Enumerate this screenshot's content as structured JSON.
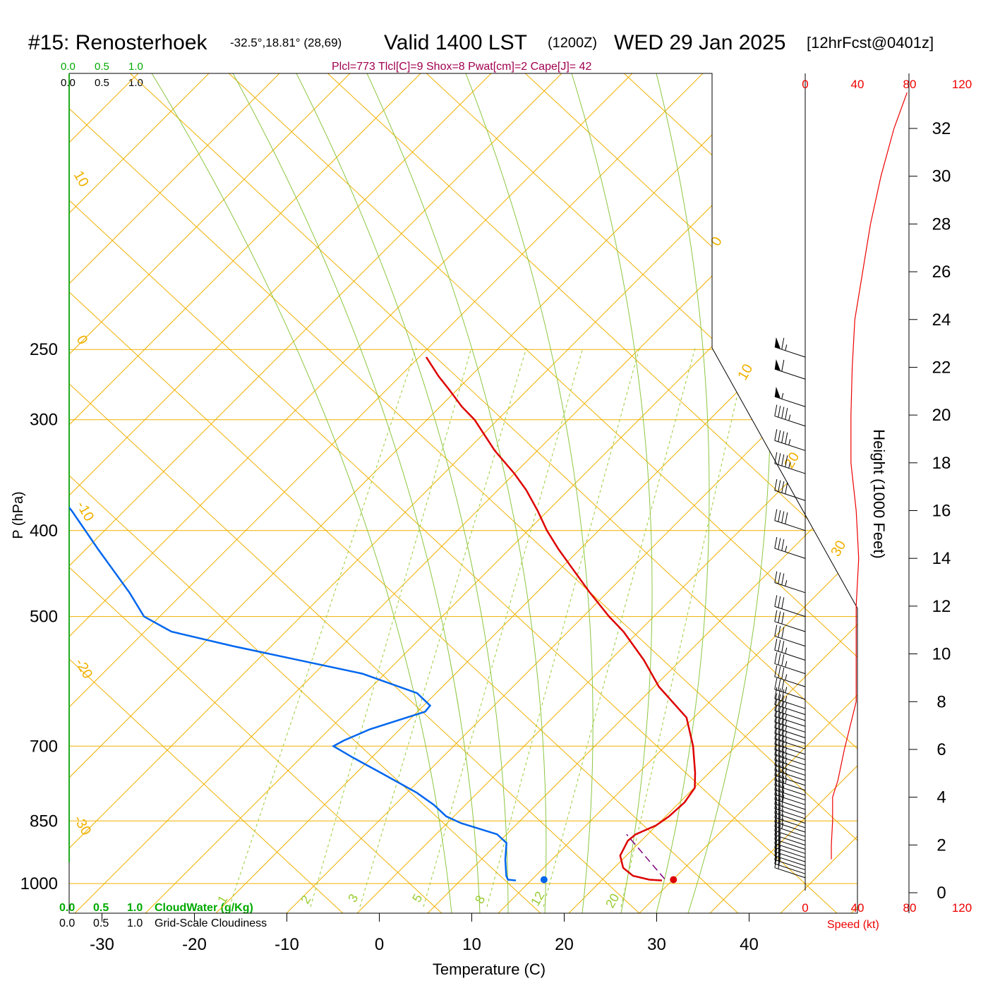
{
  "header": {
    "station": "#15: Renosterhoek",
    "coords": "-32.5°,18.81° (28,69)",
    "valid": "Valid 1400 LST",
    "utc": "(1200Z)",
    "date": "WED 29 Jan 2025",
    "forecast": "[12hrFcst@0401z]"
  },
  "indices": "Plcl=773 Tlcl[C]=9 Shox=8 Pwat[cm]=2 Cape[J]= 42",
  "scale_labels": {
    "v0": "0.0",
    "v05": "0.5",
    "v10": "1.0"
  },
  "bottom_labels": {
    "cloudwater": "CloudWater (g/Kg)",
    "cloudiness": "Grid-Scale Cloudiness"
  },
  "speed_axis": {
    "ticks": [
      "0",
      "40",
      "80",
      "120"
    ],
    "title": "Speed (kt)"
  },
  "height_axis": {
    "title": "Height (1000 Feet)",
    "ticks": [
      "0",
      "2",
      "4",
      "6",
      "8",
      "10",
      "12",
      "14",
      "16",
      "18",
      "20",
      "22",
      "24",
      "26",
      "28",
      "30",
      "32"
    ]
  },
  "colors": {
    "temperature": "#dd0000",
    "dewpoint": "#0066ee",
    "isotherm": "#f0b000",
    "dry_adiabat": "#8cc63f",
    "mixing_ratio": "#99cc33",
    "parcel": "#800080",
    "title_indices": "#a0004f",
    "scale_green": "#00aa00"
  },
  "chart_data": {
    "type": "skew-t",
    "xlabel": "Temperature (C)",
    "ylabel": "P (hPa)",
    "x_ticks": [
      -30,
      -20,
      -10,
      0,
      10,
      20,
      30,
      40
    ],
    "y_ticks": [
      250,
      300,
      400,
      500,
      700,
      850,
      1000
    ],
    "isotherm_labels": [
      "10",
      "0",
      "-10",
      "-20",
      "-30",
      "0",
      "10",
      "20",
      "30"
    ],
    "mixing_ratio_labels": [
      "1",
      "2",
      "3",
      "5",
      "8",
      "12",
      "20"
    ],
    "temperature_profile": [
      {
        "p": 992,
        "t": 30.4
      },
      {
        "p": 990,
        "t": 29.0
      },
      {
        "p": 980,
        "t": 27.0
      },
      {
        "p": 960,
        "t": 25.5
      },
      {
        "p": 930,
        "t": 24.5
      },
      {
        "p": 895,
        "t": 24.5
      },
      {
        "p": 880,
        "t": 25.0
      },
      {
        "p": 860,
        "t": 26.7
      },
      {
        "p": 840,
        "t": 27.6
      },
      {
        "p": 810,
        "t": 28.5
      },
      {
        "p": 780,
        "t": 28.8
      },
      {
        "p": 750,
        "t": 28.0
      },
      {
        "p": 700,
        "t": 26.3
      },
      {
        "p": 650,
        "t": 24.0
      },
      {
        "p": 600,
        "t": 19.3
      },
      {
        "p": 560,
        "t": 16.2
      },
      {
        "p": 520,
        "t": 12.4
      },
      {
        "p": 500,
        "t": 10.0
      },
      {
        "p": 470,
        "t": 6.6
      },
      {
        "p": 440,
        "t": 3.2
      },
      {
        "p": 420,
        "t": 0.8
      },
      {
        "p": 400,
        "t": -1.5
      },
      {
        "p": 380,
        "t": -3.6
      },
      {
        "p": 360,
        "t": -6.0
      },
      {
        "p": 345,
        "t": -8.2
      },
      {
        "p": 325,
        "t": -11.6
      },
      {
        "p": 300,
        "t": -15.5
      },
      {
        "p": 290,
        "t": -17.6
      },
      {
        "p": 277,
        "t": -20.0
      },
      {
        "p": 268,
        "t": -21.8
      },
      {
        "p": 255,
        "t": -24.2
      }
    ],
    "dewpoint_profile": [
      {
        "p": 992,
        "t": 14.6
      },
      {
        "p": 990,
        "t": 13.7
      },
      {
        "p": 980,
        "t": 13.3
      },
      {
        "p": 940,
        "t": 12.3
      },
      {
        "p": 900,
        "t": 11.5
      },
      {
        "p": 880,
        "t": 10.0
      },
      {
        "p": 855,
        "t": 5.5
      },
      {
        "p": 840,
        "t": 3.5
      },
      {
        "p": 815,
        "t": 1.5
      },
      {
        "p": 790,
        "t": -1.0
      },
      {
        "p": 750,
        "t": -6.0
      },
      {
        "p": 720,
        "t": -10.0
      },
      {
        "p": 700,
        "t": -12.6
      },
      {
        "p": 690,
        "t": -11.8
      },
      {
        "p": 670,
        "t": -9.6
      },
      {
        "p": 640,
        "t": -4.6
      },
      {
        "p": 630,
        "t": -4.4
      },
      {
        "p": 610,
        "t": -6.5
      },
      {
        "p": 580,
        "t": -13.5
      },
      {
        "p": 540,
        "t": -29.0
      },
      {
        "p": 520,
        "t": -36.5
      },
      {
        "p": 500,
        "t": -40.3
      },
      {
        "p": 470,
        "t": -43.2
      },
      {
        "p": 440,
        "t": -46.6
      },
      {
        "p": 420,
        "t": -49.0
      },
      {
        "p": 380,
        "t": -54.0
      },
      {
        "p": 360,
        "t": -57.0
      },
      {
        "p": 340,
        "t": -58.5
      },
      {
        "p": 320,
        "t": -59.0
      },
      {
        "p": 300,
        "t": -64.5
      },
      {
        "p": 290,
        "t": -66.0
      },
      {
        "p": 275,
        "t": -67.5
      },
      {
        "p": 255,
        "t": -66.0
      }
    ],
    "parcel_path": [
      {
        "p": 988,
        "t": 30.6
      },
      {
        "p": 880,
        "t": 24.0
      }
    ],
    "surface_temperature": {
      "p": 990,
      "t": 31.6
    },
    "surface_dewpoint": {
      "p": 990,
      "t": 17.6
    },
    "speed_profile": [
      {
        "h": 1.4,
        "s": 20
      },
      {
        "h": 2.0,
        "s": 20
      },
      {
        "h": 3.0,
        "s": 21
      },
      {
        "h": 4.0,
        "s": 21
      },
      {
        "h": 4.7,
        "s": 25
      },
      {
        "h": 6.0,
        "s": 30
      },
      {
        "h": 8.0,
        "s": 39
      },
      {
        "h": 10.0,
        "s": 39
      },
      {
        "h": 12.0,
        "s": 39
      },
      {
        "h": 14.0,
        "s": 41
      },
      {
        "h": 16.0,
        "s": 39
      },
      {
        "h": 18.0,
        "s": 35
      },
      {
        "h": 20.0,
        "s": 35
      },
      {
        "h": 22.0,
        "s": 36
      },
      {
        "h": 24.0,
        "s": 38
      },
      {
        "h": 26.0,
        "s": 44
      },
      {
        "h": 28.0,
        "s": 50
      },
      {
        "h": 30.0,
        "s": 58
      },
      {
        "h": 32.0,
        "s": 68
      },
      {
        "h": 33.5,
        "s": 78
      }
    ],
    "wind_barbs": [
      {
        "p": 985,
        "dir": 300,
        "kt": 20
      },
      {
        "p": 975,
        "dir": 300,
        "kt": 20
      },
      {
        "p": 965,
        "dir": 300,
        "kt": 20
      },
      {
        "p": 955,
        "dir": 300,
        "kt": 20
      },
      {
        "p": 945,
        "dir": 300,
        "kt": 20
      },
      {
        "p": 935,
        "dir": 300,
        "kt": 20
      },
      {
        "p": 925,
        "dir": 300,
        "kt": 20
      },
      {
        "p": 915,
        "dir": 300,
        "kt": 20
      },
      {
        "p": 905,
        "dir": 300,
        "kt": 20
      },
      {
        "p": 895,
        "dir": 300,
        "kt": 20
      },
      {
        "p": 885,
        "dir": 300,
        "kt": 25
      },
      {
        "p": 875,
        "dir": 300,
        "kt": 25
      },
      {
        "p": 865,
        "dir": 300,
        "kt": 25
      },
      {
        "p": 855,
        "dir": 300,
        "kt": 25
      },
      {
        "p": 845,
        "dir": 300,
        "kt": 25
      },
      {
        "p": 835,
        "dir": 300,
        "kt": 30
      },
      {
        "p": 825,
        "dir": 300,
        "kt": 30
      },
      {
        "p": 815,
        "dir": 300,
        "kt": 30
      },
      {
        "p": 805,
        "dir": 300,
        "kt": 30
      },
      {
        "p": 795,
        "dir": 300,
        "kt": 30
      },
      {
        "p": 785,
        "dir": 300,
        "kt": 35
      },
      {
        "p": 775,
        "dir": 300,
        "kt": 35
      },
      {
        "p": 765,
        "dir": 300,
        "kt": 35
      },
      {
        "p": 755,
        "dir": 300,
        "kt": 35
      },
      {
        "p": 745,
        "dir": 300,
        "kt": 35
      },
      {
        "p": 735,
        "dir": 300,
        "kt": 35
      },
      {
        "p": 725,
        "dir": 300,
        "kt": 35
      },
      {
        "p": 715,
        "dir": 300,
        "kt": 35
      },
      {
        "p": 705,
        "dir": 300,
        "kt": 35
      },
      {
        "p": 695,
        "dir": 300,
        "kt": 35
      },
      {
        "p": 685,
        "dir": 300,
        "kt": 35
      },
      {
        "p": 675,
        "dir": 300,
        "kt": 35
      },
      {
        "p": 665,
        "dir": 300,
        "kt": 35
      },
      {
        "p": 655,
        "dir": 295,
        "kt": 35
      },
      {
        "p": 645,
        "dir": 295,
        "kt": 35
      },
      {
        "p": 635,
        "dir": 290,
        "kt": 35
      },
      {
        "p": 620,
        "dir": 285,
        "kt": 35
      },
      {
        "p": 600,
        "dir": 285,
        "kt": 35
      },
      {
        "p": 580,
        "dir": 285,
        "kt": 35
      },
      {
        "p": 560,
        "dir": 285,
        "kt": 35
      },
      {
        "p": 540,
        "dir": 285,
        "kt": 30
      },
      {
        "p": 520,
        "dir": 285,
        "kt": 30
      },
      {
        "p": 500,
        "dir": 290,
        "kt": 30
      },
      {
        "p": 470,
        "dir": 285,
        "kt": 35
      },
      {
        "p": 430,
        "dir": 275,
        "kt": 35
      },
      {
        "p": 400,
        "dir": 280,
        "kt": 40
      },
      {
        "p": 370,
        "dir": 285,
        "kt": 40
      },
      {
        "p": 345,
        "dir": 290,
        "kt": 45
      },
      {
        "p": 325,
        "dir": 295,
        "kt": 45
      },
      {
        "p": 305,
        "dir": 295,
        "kt": 45
      },
      {
        "p": 290,
        "dir": 300,
        "kt": 55
      },
      {
        "p": 270,
        "dir": 300,
        "kt": 60
      },
      {
        "p": 255,
        "dir": 300,
        "kt": 65
      }
    ]
  }
}
